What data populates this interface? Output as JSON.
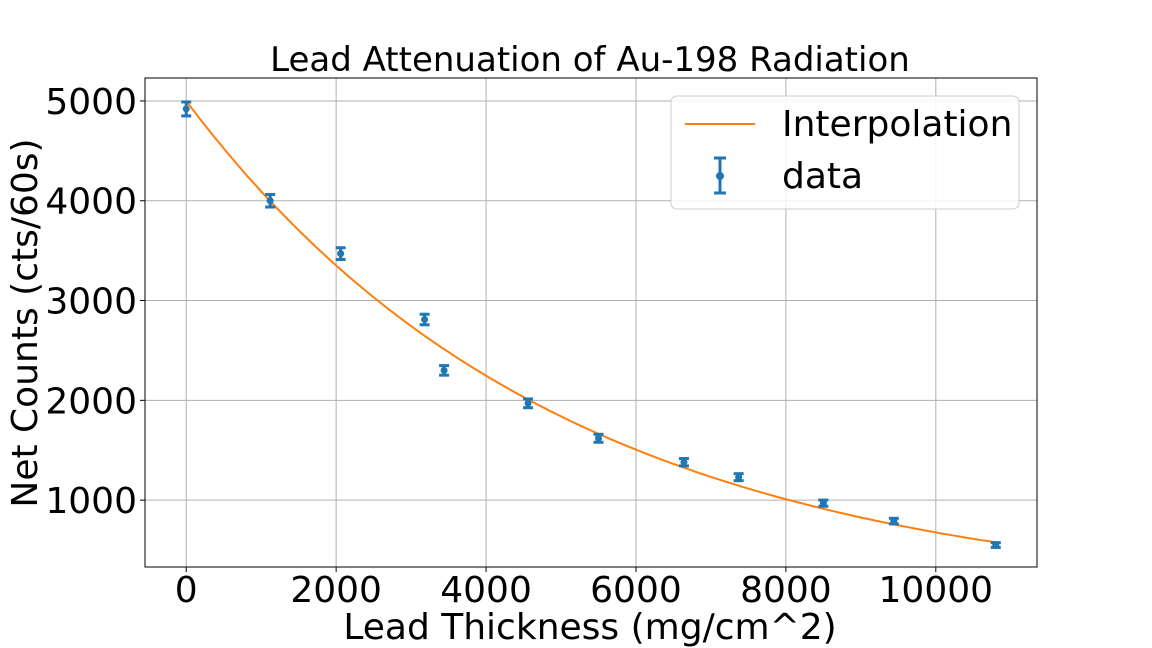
{
  "chart_data": {
    "type": "scatter",
    "title": "Lead Attenuation of Au-198 Radiation",
    "xlabel": "Lead Thickness (mg/cm^2)",
    "ylabel": "Net Counts (cts/60s)",
    "xlim": [
      -550,
      11350
    ],
    "ylim": [
      330,
      5230
    ],
    "xticks": [
      0,
      2000,
      4000,
      6000,
      8000,
      10000
    ],
    "yticks": [
      1000,
      2000,
      3000,
      4000,
      5000
    ],
    "grid": true,
    "legend_position": "top-right",
    "colors": {
      "data": "#1f77b4",
      "fit": "#ff7f0e"
    },
    "series": [
      {
        "name": "data",
        "kind": "errorbar",
        "x": [
          0,
          1120,
          2060,
          3180,
          3440,
          4560,
          5500,
          6640,
          7370,
          8500,
          9440,
          10800
        ],
        "y": [
          4920,
          4000,
          3470,
          2810,
          2300,
          1970,
          1620,
          1380,
          1230,
          970,
          790,
          550
        ],
        "yerr": [
          70,
          63,
          59,
          53,
          48,
          44,
          40,
          37,
          35,
          31,
          28,
          24
        ]
      },
      {
        "name": "Interpolation",
        "kind": "line",
        "model": {
          "a": 5000,
          "k": 0.0002
        },
        "x_range": [
          0,
          10800
        ]
      }
    ]
  }
}
